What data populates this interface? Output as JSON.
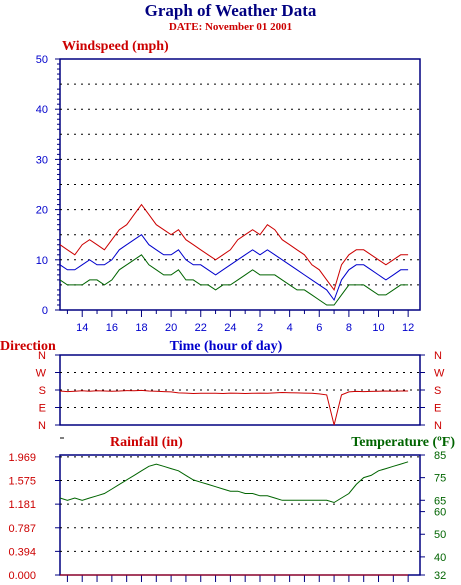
{
  "header": {
    "title": "Graph of Weather Data",
    "date": "DATE: November 01 2001"
  },
  "colors": {
    "navy": "#000080",
    "red": "#cc0000",
    "blue": "#0000cc",
    "green": "#006400"
  },
  "chart_data": [
    {
      "type": "line",
      "title": "Windspeed (mph)",
      "xlabel": "Time (hour of day)",
      "ylabel": "",
      "ylim": [
        0,
        50
      ],
      "yticks": [
        "0",
        "10",
        "20",
        "30",
        "40",
        "50"
      ],
      "xticks": [
        "14",
        "16",
        "18",
        "20",
        "22",
        "24",
        "2",
        "4",
        "6",
        "8",
        "10",
        "12"
      ],
      "grid": true,
      "x": [
        12.5,
        13,
        13.5,
        14,
        14.5,
        15,
        15.5,
        16,
        16.5,
        17,
        17.5,
        18,
        18.5,
        19,
        19.5,
        20,
        20.5,
        21,
        21.5,
        22,
        22.5,
        23,
        23.5,
        24,
        24.5,
        25,
        25.5,
        26,
        26.5,
        27,
        27.5,
        28,
        28.5,
        29,
        29.5,
        30,
        30.5,
        31,
        31.5,
        32,
        32.5,
        33,
        33.5,
        34,
        34.5,
        35,
        35.5,
        36
      ],
      "series": [
        {
          "color": "red",
          "values": [
            13,
            12,
            11,
            13,
            14,
            13,
            12,
            14,
            16,
            17,
            19,
            21,
            19,
            17,
            16,
            15,
            16,
            14,
            13,
            12,
            11,
            10,
            11,
            12,
            14,
            15,
            16,
            15,
            17,
            16,
            14,
            13,
            12,
            11,
            9,
            8,
            6,
            4,
            9,
            11,
            12,
            12,
            11,
            10,
            9,
            10,
            11,
            11
          ]
        },
        {
          "color": "blue",
          "values": [
            9,
            8,
            8,
            9,
            10,
            9,
            9,
            10,
            12,
            13,
            14,
            15,
            13,
            12,
            11,
            11,
            12,
            10,
            9,
            9,
            8,
            7,
            8,
            9,
            10,
            11,
            12,
            11,
            12,
            11,
            10,
            9,
            8,
            7,
            6,
            5,
            4,
            2,
            6,
            8,
            9,
            9,
            8,
            7,
            6,
            7,
            8,
            8
          ]
        },
        {
          "color": "green",
          "values": [
            6,
            5,
            5,
            5,
            6,
            6,
            5,
            6,
            8,
            9,
            10,
            11,
            9,
            8,
            7,
            7,
            8,
            6,
            6,
            5,
            5,
            4,
            5,
            5,
            6,
            7,
            8,
            7,
            7,
            7,
            6,
            5,
            4,
            4,
            3,
            2,
            1,
            1,
            3,
            5,
            5,
            5,
            4,
            3,
            3,
            4,
            5,
            5
          ]
        }
      ]
    },
    {
      "type": "line",
      "title": "Direction",
      "ylim": [
        "N",
        "N"
      ],
      "yticks": [
        "N",
        "W",
        "S",
        "E",
        "N"
      ],
      "ylevels": [
        0,
        90,
        180,
        270,
        360
      ],
      "series": [
        {
          "color": "red",
          "values": [
            185,
            188,
            186,
            184,
            186,
            184,
            185,
            186,
            185,
            183,
            184,
            182,
            185,
            186,
            188,
            190,
            195,
            196,
            198,
            197,
            197,
            197,
            198,
            196,
            197,
            198,
            197,
            196,
            197,
            195,
            193,
            194,
            195,
            196,
            197,
            200,
            205,
            360,
            205,
            190,
            187,
            188,
            187,
            186,
            185,
            186,
            185,
            185
          ]
        }
      ]
    },
    {
      "type": "line",
      "title": "Rainfall (in)",
      "ylim": [
        0,
        2.0
      ],
      "yticks": [
        "0.000",
        "0.394",
        "0.787",
        "1.181",
        "1.575",
        "1.969"
      ],
      "series": [
        {
          "name": "Rainfall (in)",
          "color": "red",
          "values": [
            0,
            0,
            0,
            0,
            0,
            0,
            0,
            0,
            0,
            0,
            0,
            0,
            0,
            0,
            0,
            0,
            0,
            0,
            0,
            0,
            0,
            0,
            0,
            0,
            0,
            0,
            0,
            0,
            0,
            0,
            0,
            0,
            0,
            0,
            0,
            0,
            0,
            0,
            0,
            0,
            0,
            0,
            0,
            0,
            0,
            0,
            0,
            0
          ]
        }
      ]
    },
    {
      "type": "line",
      "title": "Temperature (ºF)",
      "ylim": [
        32,
        85
      ],
      "yticks": [
        "32",
        "40",
        "50",
        "60",
        "65",
        "75",
        "85"
      ],
      "series": [
        {
          "name": "Temperature (ºF)",
          "color": "green",
          "values": [
            66,
            65,
            66,
            65,
            66,
            67,
            68,
            70,
            72,
            74,
            76,
            78,
            80,
            81,
            80,
            79,
            78,
            76,
            74,
            73,
            72,
            71,
            70,
            69,
            69,
            68,
            68,
            67,
            67,
            66,
            65,
            65,
            65,
            65,
            65,
            65,
            65,
            64,
            66,
            68,
            72,
            75,
            76,
            78,
            79,
            80,
            81,
            82
          ]
        }
      ]
    }
  ]
}
